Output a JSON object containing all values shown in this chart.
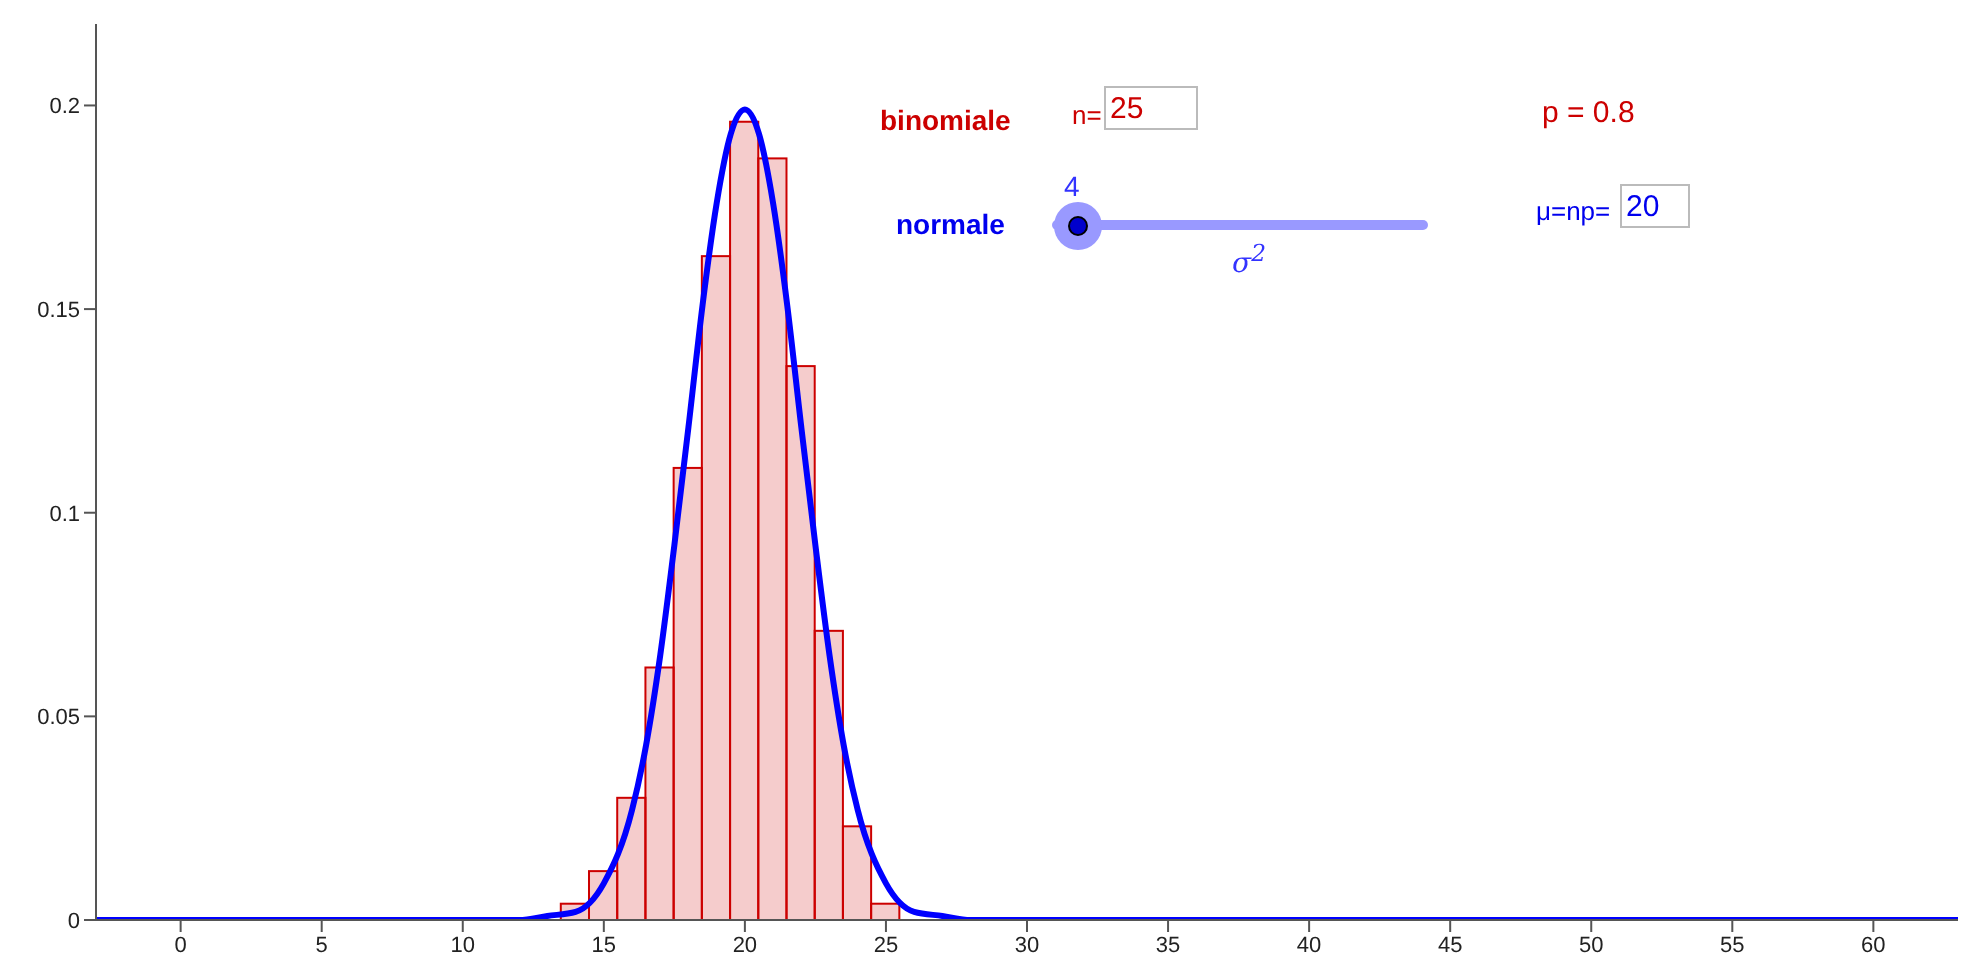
{
  "chart_data": {
    "type": "histogram",
    "xlim": [
      -3,
      63
    ],
    "ylim": [
      0,
      0.22
    ],
    "xticks": [
      0,
      5,
      10,
      15,
      20,
      25,
      30,
      35,
      40,
      45,
      50,
      55,
      60
    ],
    "yticks": [
      0,
      0.05,
      0.1,
      0.15,
      0.2
    ],
    "grid": false,
    "legend": false,
    "marker": "none",
    "series": [
      {
        "color": "#cc0000",
        "bins": [
          13.5,
          14.5,
          15.5,
          16.5,
          17.5,
          18.5,
          19.5,
          20.5,
          21.5,
          22.5,
          23.5,
          24.5,
          25.5
        ],
        "values": [
          0.004,
          0.012,
          0.03,
          0.062,
          0.111,
          0.163,
          0.196,
          0.187,
          0.136,
          0.071,
          0.023,
          0.004
        ]
      },
      {
        "type": "line",
        "color": "#0000ff",
        "x": [
          -3,
          10,
          12,
          13,
          14,
          15,
          16,
          16.5,
          17,
          17.5,
          18,
          18.5,
          19,
          19.5,
          20,
          20.5,
          21,
          21.5,
          22,
          22.5,
          23,
          23.5,
          24,
          25,
          26,
          27,
          28,
          30,
          63
        ],
        "values": [
          0,
          0,
          0,
          0.001,
          0.002,
          0.009,
          0.027,
          0.043,
          0.065,
          0.092,
          0.121,
          0.151,
          0.176,
          0.193,
          0.199,
          0.193,
          0.176,
          0.151,
          0.121,
          0.092,
          0.065,
          0.043,
          0.027,
          0.009,
          0.002,
          0.001,
          0,
          0,
          0
        ]
      }
    ],
    "annotations": [
      "binomiale",
      "n=",
      "25",
      "p = 0.8",
      "normale",
      "4",
      "σ$^{2}$",
      "μ=np=",
      "20"
    ]
  }
}
